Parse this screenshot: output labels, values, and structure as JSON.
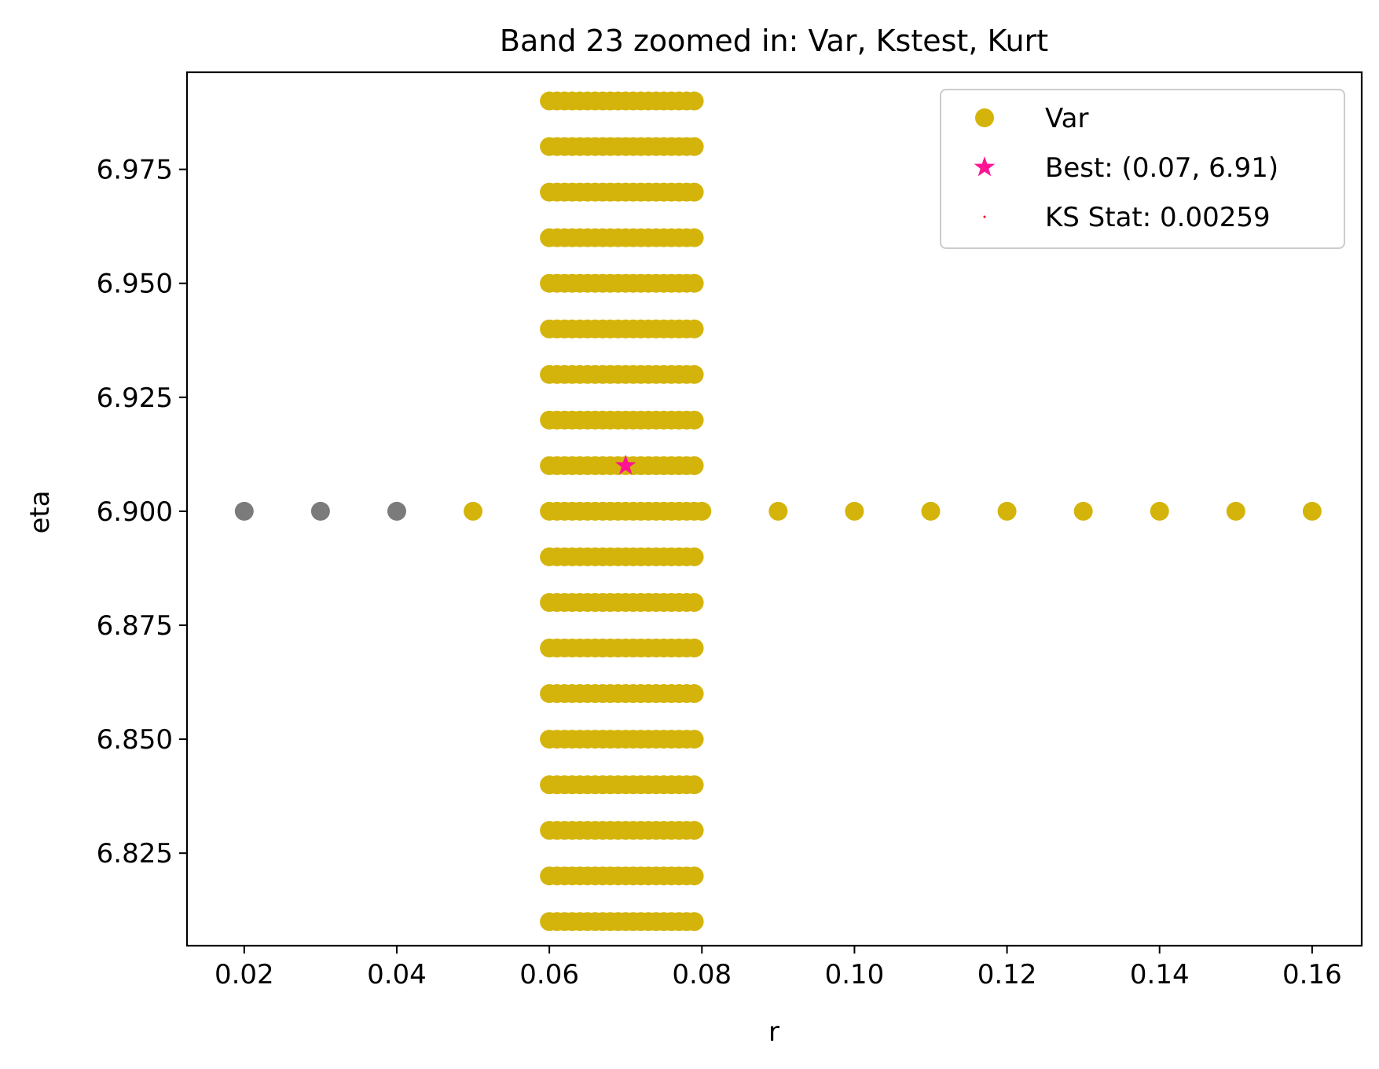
{
  "chart_data": {
    "type": "scatter",
    "title": "Band 23 zoomed in: Var, Kstest, Kurt",
    "xlabel": "r",
    "ylabel": "eta",
    "xlim": [
      0.0125,
      0.1665
    ],
    "ylim": [
      6.8047,
      6.9963
    ],
    "xticks": [
      0.02,
      0.04,
      0.06,
      0.08,
      0.1,
      0.12,
      0.14,
      0.16
    ],
    "xtick_labels": [
      "0.02",
      "0.04",
      "0.06",
      "0.08",
      "0.10",
      "0.12",
      "0.14",
      "0.16"
    ],
    "yticks": [
      6.825,
      6.85,
      6.875,
      6.9,
      6.925,
      6.95,
      6.975
    ],
    "ytick_labels": [
      "6.825",
      "6.850",
      "6.875",
      "6.900",
      "6.925",
      "6.950",
      "6.975"
    ],
    "grid": false,
    "legend_position": "top-right",
    "colors": {
      "var": "#d4b40a",
      "gray": "#7b7b7b",
      "best": "#ff1493",
      "ks": "#ff0000"
    },
    "series": [
      {
        "name": "Var",
        "color": "#d4b40a",
        "grid_block": {
          "r_start": 0.06,
          "r_end": 0.079,
          "r_step": 0.001,
          "eta_start": 6.81,
          "eta_end": 6.99,
          "eta_step": 0.01
        },
        "points": [
          [
            0.05,
            6.9
          ],
          [
            0.08,
            6.9
          ],
          [
            0.09,
            6.9
          ],
          [
            0.1,
            6.9
          ],
          [
            0.11,
            6.9
          ],
          [
            0.12,
            6.9
          ],
          [
            0.13,
            6.9
          ],
          [
            0.14,
            6.9
          ],
          [
            0.15,
            6.9
          ],
          [
            0.16,
            6.9
          ]
        ]
      },
      {
        "name": "",
        "color": "#7b7b7b",
        "points": [
          [
            0.02,
            6.9
          ],
          [
            0.03,
            6.9
          ],
          [
            0.04,
            6.9
          ]
        ]
      },
      {
        "name": "Best: (0.07, 6.91)",
        "marker": "star",
        "color": "#ff1493",
        "points": [
          [
            0.07,
            6.91
          ]
        ]
      },
      {
        "name": "KS Stat: 0.00259",
        "marker": "dot",
        "color": "#ff0000",
        "points": []
      }
    ],
    "legend": [
      {
        "label": "Var",
        "marker": "circle",
        "color": "#d4b40a"
      },
      {
        "label": "Best: (0.07, 6.91)",
        "marker": "star",
        "color": "#ff1493"
      },
      {
        "label": "KS Stat: 0.00259",
        "marker": "dot",
        "color": "#ff0000"
      }
    ]
  }
}
